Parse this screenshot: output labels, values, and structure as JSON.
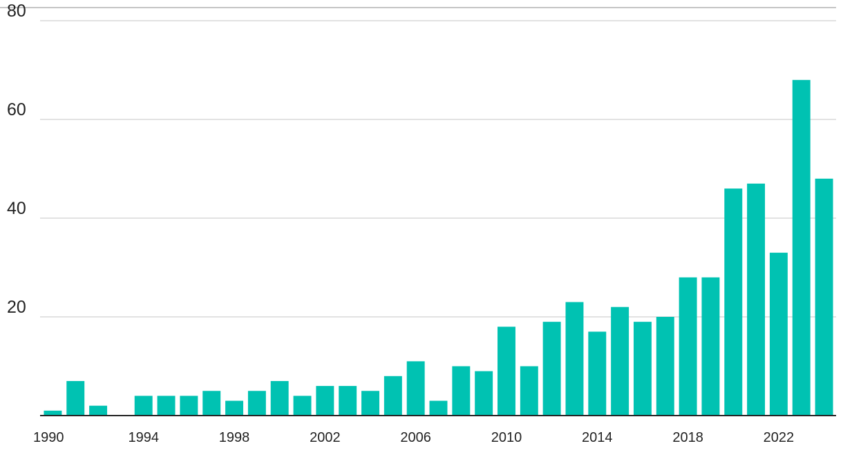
{
  "chart_data": {
    "type": "bar",
    "title": "",
    "xlabel": "",
    "ylabel": "",
    "categories": [
      1990,
      1991,
      1992,
      1993,
      1994,
      1995,
      1996,
      1997,
      1998,
      1999,
      2000,
      2001,
      2002,
      2003,
      2004,
      2005,
      2006,
      2007,
      2008,
      2009,
      2010,
      2011,
      2012,
      2013,
      2014,
      2015,
      2016,
      2017,
      2018,
      2019,
      2020,
      2021,
      2022,
      2023,
      2024
    ],
    "values": [
      1,
      7,
      2,
      0,
      4,
      4,
      4,
      5,
      3,
      5,
      7,
      4,
      6,
      6,
      5,
      8,
      11,
      3,
      10,
      9,
      18,
      10,
      19,
      23,
      17,
      22,
      19,
      20,
      28,
      28,
      46,
      47,
      33,
      68,
      48
    ],
    "ylim": [
      0,
      80
    ],
    "y_ticks": [
      20,
      40,
      60,
      80
    ],
    "x_ticks": [
      "1990",
      "1994",
      "1998",
      "2002",
      "2006",
      "2010",
      "2014",
      "2018",
      "2022"
    ],
    "grid": true,
    "bar_color": "#00c2b2",
    "legend": "none"
  }
}
